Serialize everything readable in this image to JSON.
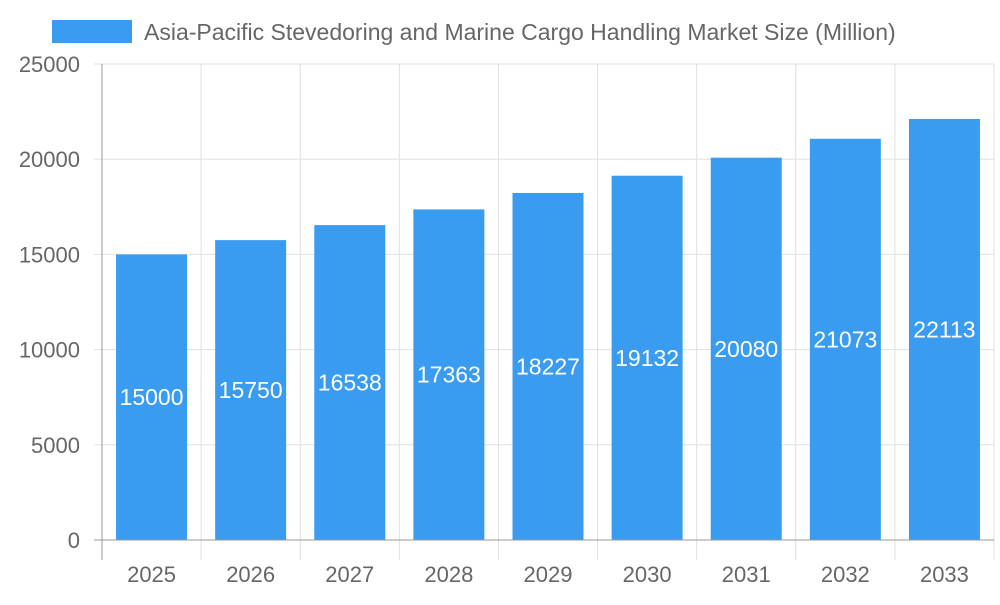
{
  "chart_data": {
    "type": "bar",
    "title": "",
    "xlabel": "",
    "ylabel": "",
    "legend": {
      "label": "Asia-Pacific Stevedoring and Marine Cargo Handling Market Size (Million)",
      "placement": "top"
    },
    "categories": [
      "2025",
      "2026",
      "2027",
      "2028",
      "2029",
      "2030",
      "2031",
      "2032",
      "2033"
    ],
    "series": [
      {
        "name": "Asia-Pacific Stevedoring and Marine Cargo Handling Market Size (Million)",
        "values": [
          15000,
          15750,
          16538,
          17363,
          18227,
          19132,
          20080,
          21073,
          22113
        ]
      }
    ],
    "ylim": [
      0,
      25000
    ],
    "yticks": [
      0,
      5000,
      10000,
      15000,
      20000,
      25000
    ],
    "grid": true,
    "data_labels": true,
    "colors": {
      "bar": "#3a9cf0",
      "grid": "#e0e0e0",
      "axis": "#999999",
      "text": "#666666",
      "data_label": "#ffffff"
    }
  }
}
